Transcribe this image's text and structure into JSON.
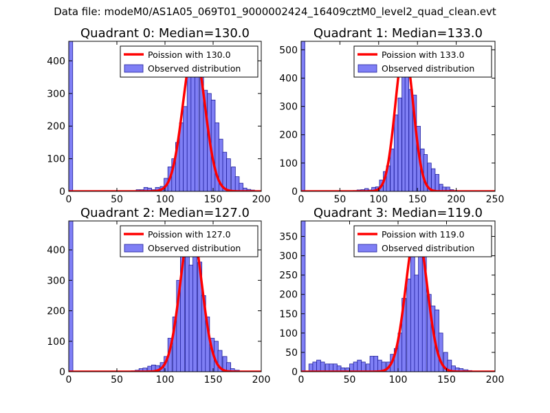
{
  "figure": {
    "title": "Data file: modeM0/AS1A05_069T01_9000002424_16409cztM0_level2_quad_clean.evt"
  },
  "colors": {
    "bars": "#7f7ff5",
    "bar_edge": "#1d1d9a",
    "poisson": "#ff0000"
  },
  "chart_data": [
    {
      "type": "bar",
      "title": "Quadrant 0: Median=130.0",
      "median": 130.0,
      "xlim": [
        0,
        200
      ],
      "ylim": [
        0,
        460
      ],
      "xticks": [
        0,
        50,
        100,
        150,
        200
      ],
      "yticks": [
        0,
        100,
        200,
        300,
        400
      ],
      "bin_width": 4.1,
      "legend": [
        "Poission with 130.0",
        "Observed distribution"
      ],
      "bars": [
        [
          0,
          460
        ],
        [
          12,
          1
        ],
        [
          16,
          1
        ],
        [
          20,
          1
        ],
        [
          25,
          1
        ],
        [
          29,
          1
        ],
        [
          33,
          1
        ],
        [
          37,
          1
        ],
        [
          41,
          1
        ],
        [
          45,
          1
        ],
        [
          49,
          1
        ],
        [
          53,
          1
        ],
        [
          57,
          1
        ],
        [
          61,
          2
        ],
        [
          65,
          2
        ],
        [
          70,
          5
        ],
        [
          74,
          5
        ],
        [
          78,
          12
        ],
        [
          82,
          10
        ],
        [
          86,
          5
        ],
        [
          90,
          12
        ],
        [
          95,
          15
        ],
        [
          99,
          40
        ],
        [
          103,
          75
        ],
        [
          107,
          100
        ],
        [
          111,
          150
        ],
        [
          115,
          210
        ],
        [
          119,
          260
        ],
        [
          123,
          380
        ],
        [
          127,
          430
        ],
        [
          131,
          440
        ],
        [
          136,
          380
        ],
        [
          140,
          310
        ],
        [
          144,
          300
        ],
        [
          148,
          280
        ],
        [
          152,
          210
        ],
        [
          156,
          160
        ],
        [
          160,
          120
        ],
        [
          164,
          100
        ],
        [
          169,
          75
        ],
        [
          173,
          45
        ],
        [
          177,
          25
        ],
        [
          181,
          10
        ],
        [
          185,
          6
        ],
        [
          189,
          4
        ],
        [
          193,
          2
        ]
      ],
      "poisson_mean": 130.0,
      "poisson_peak": 440
    },
    {
      "type": "bar",
      "title": "Quadrant 1: Median=133.0",
      "median": 133.0,
      "xlim": [
        0,
        250
      ],
      "ylim": [
        0,
        530
      ],
      "xticks": [
        0,
        50,
        100,
        150,
        200,
        250
      ],
      "yticks": [
        0,
        100,
        200,
        300,
        400,
        500
      ],
      "bin_width": 4.8,
      "legend": [
        "Poission with 133.0",
        "Observed distribution"
      ],
      "bars": [
        [
          0,
          530
        ],
        [
          14,
          1
        ],
        [
          19,
          1
        ],
        [
          24,
          1
        ],
        [
          29,
          1
        ],
        [
          34,
          1
        ],
        [
          38,
          2
        ],
        [
          43,
          1
        ],
        [
          48,
          1
        ],
        [
          53,
          1
        ],
        [
          58,
          2
        ],
        [
          62,
          2
        ],
        [
          67,
          3
        ],
        [
          72,
          5
        ],
        [
          77,
          6
        ],
        [
          82,
          10
        ],
        [
          86,
          5
        ],
        [
          91,
          14
        ],
        [
          96,
          16
        ],
        [
          101,
          40
        ],
        [
          106,
          70
        ],
        [
          110,
          90
        ],
        [
          115,
          150
        ],
        [
          120,
          270
        ],
        [
          125,
          330
        ],
        [
          130,
          500
        ],
        [
          134,
          440
        ],
        [
          139,
          360
        ],
        [
          144,
          340
        ],
        [
          149,
          230
        ],
        [
          154,
          150
        ],
        [
          158,
          130
        ],
        [
          163,
          100
        ],
        [
          168,
          80
        ],
        [
          173,
          60
        ],
        [
          178,
          25
        ],
        [
          182,
          15
        ],
        [
          187,
          15
        ],
        [
          192,
          6
        ],
        [
          197,
          3
        ],
        [
          202,
          2
        ]
      ],
      "poisson_mean": 133.0,
      "poisson_peak": 505
    },
    {
      "type": "bar",
      "title": "Quadrant 2: Median=127.0",
      "median": 127.0,
      "xlim": [
        0,
        200
      ],
      "ylim": [
        0,
        495
      ],
      "xticks": [
        0,
        50,
        100,
        150,
        200
      ],
      "yticks": [
        0,
        100,
        200,
        300,
        400
      ],
      "bin_width": 4.3,
      "legend": [
        "Poission with 127.0",
        "Observed distribution"
      ],
      "bars": [
        [
          0,
          495
        ],
        [
          13,
          1
        ],
        [
          17,
          1
        ],
        [
          22,
          1
        ],
        [
          26,
          1
        ],
        [
          30,
          1
        ],
        [
          34,
          1
        ],
        [
          39,
          1
        ],
        [
          43,
          1
        ],
        [
          47,
          1
        ],
        [
          52,
          1
        ],
        [
          56,
          2
        ],
        [
          60,
          2
        ],
        [
          65,
          3
        ],
        [
          69,
          5
        ],
        [
          73,
          10
        ],
        [
          77,
          12
        ],
        [
          82,
          18
        ],
        [
          86,
          22
        ],
        [
          90,
          20
        ],
        [
          95,
          30
        ],
        [
          99,
          50
        ],
        [
          103,
          110
        ],
        [
          108,
          180
        ],
        [
          112,
          300
        ],
        [
          116,
          430
        ],
        [
          121,
          470
        ],
        [
          125,
          350
        ],
        [
          129,
          430
        ],
        [
          134,
          360
        ],
        [
          138,
          250
        ],
        [
          142,
          180
        ],
        [
          147,
          110
        ],
        [
          151,
          100
        ],
        [
          155,
          70
        ],
        [
          160,
          50
        ],
        [
          164,
          30
        ],
        [
          168,
          10
        ],
        [
          173,
          5
        ],
        [
          177,
          2
        ]
      ],
      "poisson_mean": 127.0,
      "poisson_peak": 475
    },
    {
      "type": "bar",
      "title": "Quadrant 3: Median=119.0",
      "median": 119.0,
      "xlim": [
        0,
        200
      ],
      "ylim": [
        0,
        390
      ],
      "xticks": [
        0,
        50,
        100,
        150,
        200
      ],
      "yticks": [
        0,
        50,
        100,
        150,
        200,
        250,
        300,
        350
      ],
      "bin_width": 4.2,
      "legend": [
        "Poission with 119.0",
        "Observed distribution"
      ],
      "bars": [
        [
          0,
          390
        ],
        [
          8,
          20
        ],
        [
          12,
          25
        ],
        [
          16,
          30
        ],
        [
          20,
          25
        ],
        [
          25,
          20
        ],
        [
          29,
          20
        ],
        [
          33,
          20
        ],
        [
          37,
          15
        ],
        [
          41,
          10
        ],
        [
          46,
          10
        ],
        [
          50,
          20
        ],
        [
          54,
          25
        ],
        [
          58,
          30
        ],
        [
          62,
          25
        ],
        [
          67,
          20
        ],
        [
          71,
          40
        ],
        [
          75,
          40
        ],
        [
          79,
          30
        ],
        [
          83,
          25
        ],
        [
          88,
          25
        ],
        [
          92,
          45
        ],
        [
          96,
          60
        ],
        [
          100,
          100
        ],
        [
          104,
          190
        ],
        [
          109,
          240
        ],
        [
          113,
          300
        ],
        [
          117,
          250
        ],
        [
          121,
          300
        ],
        [
          125,
          340
        ],
        [
          130,
          200
        ],
        [
          134,
          170
        ],
        [
          138,
          160
        ],
        [
          142,
          100
        ],
        [
          147,
          50
        ],
        [
          151,
          30
        ],
        [
          155,
          15
        ],
        [
          159,
          10
        ],
        [
          163,
          8
        ],
        [
          168,
          5
        ],
        [
          172,
          3
        ]
      ],
      "poisson_mean": 119.0,
      "poisson_peak": 370
    }
  ]
}
